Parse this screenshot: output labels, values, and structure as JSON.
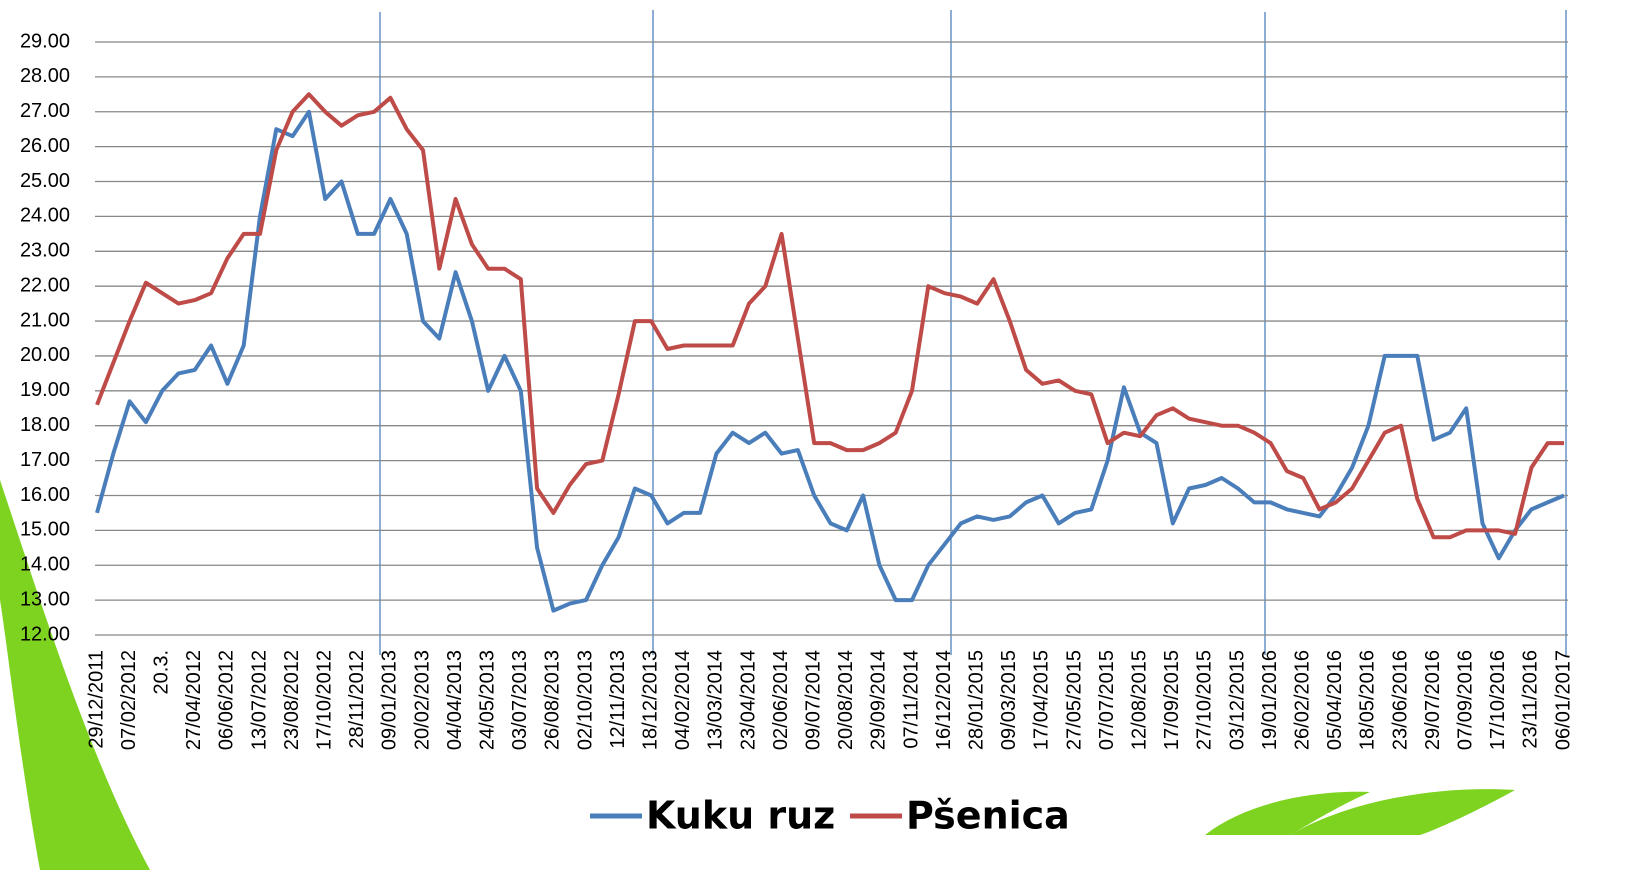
{
  "chart_data": {
    "type": "line",
    "categories": [
      "29/12/2011",
      null,
      "07/02/2012",
      null,
      "20.3.",
      null,
      "27/04/2012",
      null,
      "06/06/2012",
      null,
      "13/07/2012",
      null,
      "23/08/2012",
      null,
      "17/10/2012",
      null,
      "28/11/2012",
      null,
      "09/01/2013",
      null,
      "20/02/2013",
      null,
      "04/04/2013",
      null,
      "24/05/2013",
      null,
      "03/07/2013",
      null,
      "26/08/2013",
      null,
      "02/10/2013",
      null,
      "12/11/2013",
      null,
      "18/12/2013",
      null,
      "04/02/2014",
      null,
      "13/03/2014",
      null,
      "23/04/2014",
      null,
      "02/06/2014",
      null,
      "09/07/2014",
      null,
      "20/08/2014",
      null,
      "29/09/2014",
      null,
      "07/11/2014",
      null,
      "16/12/2014",
      null,
      "28/01/2015",
      null,
      "09/03/2015",
      null,
      "17/04/2015",
      null,
      "27/05/2015",
      null,
      "07/07/2015",
      null,
      "12/08/2015",
      null,
      "17/09/2015",
      null,
      "27/10/2015",
      null,
      "03/12/2015",
      null,
      "19/01/2016",
      null,
      "26/02/2016",
      null,
      "05/04/2016",
      null,
      "18/05/2016",
      null,
      "23/06/2016",
      null,
      "29/07/2016",
      null,
      "07/09/2016",
      null,
      "17/10/2016",
      null,
      "23/11/2016",
      null,
      "06/01/2017"
    ],
    "series": [
      {
        "name": "Kuku ruz",
        "color": "#4a7ebb",
        "values": [
          15.5,
          17.2,
          18.7,
          18.1,
          19.0,
          19.5,
          19.6,
          20.3,
          19.2,
          20.3,
          24.0,
          26.5,
          26.3,
          27.0,
          24.5,
          25.0,
          23.5,
          23.5,
          24.5,
          23.5,
          21.0,
          20.5,
          22.4,
          21.0,
          19.0,
          20.0,
          19.0,
          14.5,
          12.7,
          12.9,
          13.0,
          14.0,
          14.8,
          16.2,
          16.0,
          15.2,
          15.5,
          15.5,
          17.2,
          17.8,
          17.5,
          17.8,
          17.2,
          17.3,
          16.0,
          15.2,
          15.0,
          16.0,
          14.0,
          13.0,
          13.0,
          14.0,
          14.6,
          15.2,
          15.4,
          15.3,
          15.4,
          15.8,
          16.0,
          15.2,
          15.5,
          15.6,
          17.0,
          19.1,
          17.8,
          17.5,
          15.2,
          16.2,
          16.3,
          16.5,
          16.2,
          15.8,
          15.8,
          15.6,
          15.5,
          15.4,
          16.0,
          16.8,
          18.0,
          20.0,
          20.0,
          20.0,
          17.6,
          17.8,
          18.5,
          15.2,
          14.2,
          15.0,
          15.6,
          15.8,
          16.0
        ]
      },
      {
        "name": "Pšenica",
        "color": "#be4b48",
        "values": [
          18.6,
          19.8,
          21.0,
          22.1,
          21.8,
          21.5,
          21.6,
          21.8,
          22.8,
          23.5,
          23.5,
          25.9,
          27.0,
          27.5,
          27.0,
          26.6,
          26.9,
          27.0,
          27.4,
          26.5,
          25.9,
          22.5,
          24.5,
          23.2,
          22.5,
          22.5,
          22.2,
          16.2,
          15.5,
          16.3,
          16.9,
          17.0,
          18.9,
          21.0,
          21.0,
          20.2,
          20.3,
          20.3,
          20.3,
          20.3,
          21.5,
          22.0,
          23.5,
          20.5,
          17.5,
          17.5,
          17.3,
          17.3,
          17.5,
          17.8,
          19.0,
          22.0,
          21.8,
          21.7,
          21.5,
          22.2,
          21.0,
          19.6,
          19.2,
          19.3,
          19.0,
          18.9,
          17.5,
          17.8,
          17.7,
          18.3,
          18.5,
          18.2,
          18.1,
          18.0,
          18.0,
          17.8,
          17.5,
          16.7,
          16.5,
          15.6,
          15.8,
          16.2,
          17.0,
          17.8,
          18.0,
          15.9,
          14.8,
          14.8,
          15.0,
          15.0,
          15.0,
          14.9,
          16.8,
          17.5,
          17.5
        ]
      }
    ],
    "ylim": [
      12,
      29
    ],
    "yticks": [
      {
        "value": 12,
        "label": "12.00"
      },
      {
        "value": 13,
        "label": "13.00"
      },
      {
        "value": 14,
        "label": "14.00"
      },
      {
        "value": 15,
        "label": "15.00"
      },
      {
        "value": 16,
        "label": "16.00"
      },
      {
        "value": 17,
        "label": "17.00"
      },
      {
        "value": 18,
        "label": "18.00"
      },
      {
        "value": 19,
        "label": "19.00"
      },
      {
        "value": 20,
        "label": "20.00"
      },
      {
        "value": 21,
        "label": "21.00"
      },
      {
        "value": 22,
        "label": "22.00"
      },
      {
        "value": 23,
        "label": "23.00"
      },
      {
        "value": 24,
        "label": "24.00"
      },
      {
        "value": 25,
        "label": "25.00"
      },
      {
        "value": 26,
        "label": "26.00"
      },
      {
        "value": 27,
        "label": "27.00"
      },
      {
        "value": 28,
        "label": "28.00"
      },
      {
        "value": 29,
        "label": "29.00"
      }
    ],
    "grid": true
  }
}
